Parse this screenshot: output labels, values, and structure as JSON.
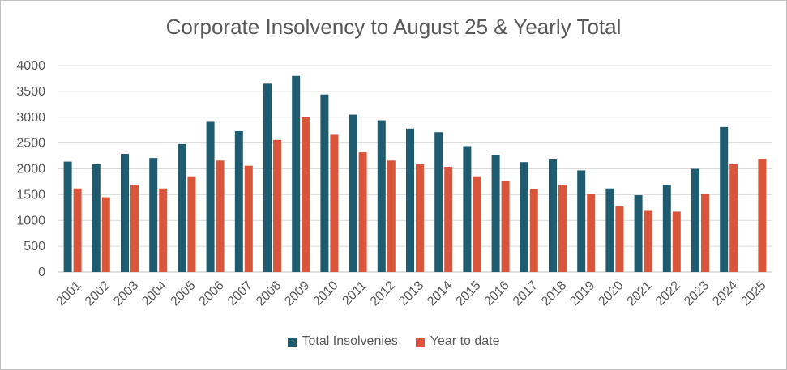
{
  "chart_data": {
    "type": "bar",
    "title": "Corporate Insolvency to August 25 & Yearly Total",
    "xlabel": "",
    "ylabel": "",
    "ylim": [
      0,
      4000
    ],
    "yticks": [
      0,
      500,
      1000,
      1500,
      2000,
      2500,
      3000,
      3500,
      4000
    ],
    "grid": true,
    "legend_position": "bottom",
    "categories": [
      "2001",
      "2002",
      "2003",
      "2004",
      "2005",
      "2006",
      "2007",
      "2008",
      "2009",
      "2010",
      "2011",
      "2012",
      "2013",
      "2014",
      "2015",
      "2016",
      "2017",
      "2018",
      "2019",
      "2020",
      "2021",
      "2022",
      "2023",
      "2024",
      "2025"
    ],
    "series": [
      {
        "name": "Total Insolvenies",
        "color": "#1f5c70",
        "values": [
          2140,
          2090,
          2290,
          2210,
          2480,
          2910,
          2730,
          3650,
          3800,
          3440,
          3050,
          2940,
          2780,
          2710,
          2440,
          2270,
          2130,
          2180,
          1970,
          1620,
          1490,
          1690,
          2000,
          2810,
          null
        ]
      },
      {
        "name": "Year to date",
        "color": "#d9553b",
        "values": [
          1620,
          1450,
          1690,
          1620,
          1840,
          2160,
          2060,
          2560,
          3000,
          2660,
          2320,
          2160,
          2090,
          2040,
          1840,
          1760,
          1610,
          1690,
          1510,
          1270,
          1200,
          1170,
          1510,
          2090,
          2190
        ]
      }
    ]
  }
}
